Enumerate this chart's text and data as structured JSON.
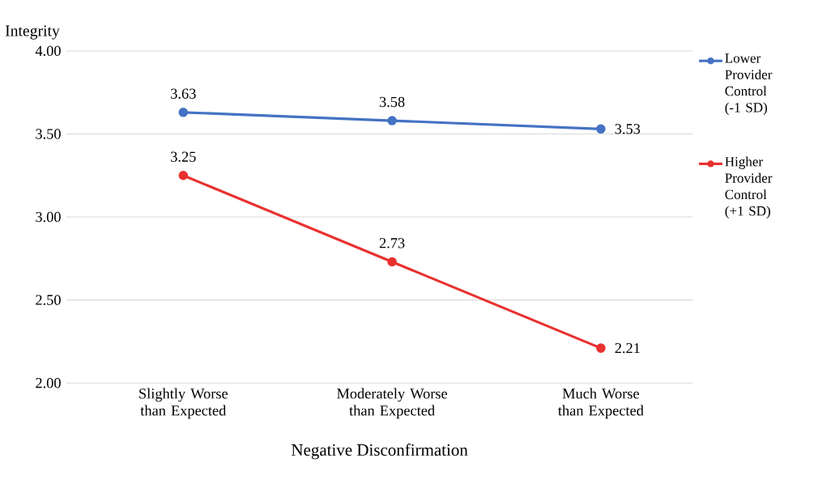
{
  "chart_data": {
    "type": "line",
    "xlabel": "Negative Disconfirmation",
    "ylabel": "Integrity",
    "categories": [
      "Slightly Worse than Expected",
      "Moderately Worse than Expected",
      "Much Worse than Expected"
    ],
    "series": [
      {
        "name": "Lower Provider Control (-1 SD)",
        "color": "#4472c4",
        "values": [
          3.63,
          3.58,
          3.53
        ]
      },
      {
        "name": "Higher Provider Control (+1 SD)",
        "color": "#e8312f",
        "values": [
          3.25,
          2.73,
          2.21
        ]
      }
    ],
    "ylim": [
      2,
      4
    ],
    "yticks": [
      {
        "value": 2,
        "label": "2.00"
      },
      {
        "value": 2.5,
        "label": "2.50"
      },
      {
        "value": 3,
        "label": "3.00"
      },
      {
        "value": 3.5,
        "label": "3.50"
      },
      {
        "value": 4,
        "label": "4.00"
      }
    ],
    "grid": "y",
    "legend": "right",
    "marker": "circle",
    "data_labels": true
  }
}
